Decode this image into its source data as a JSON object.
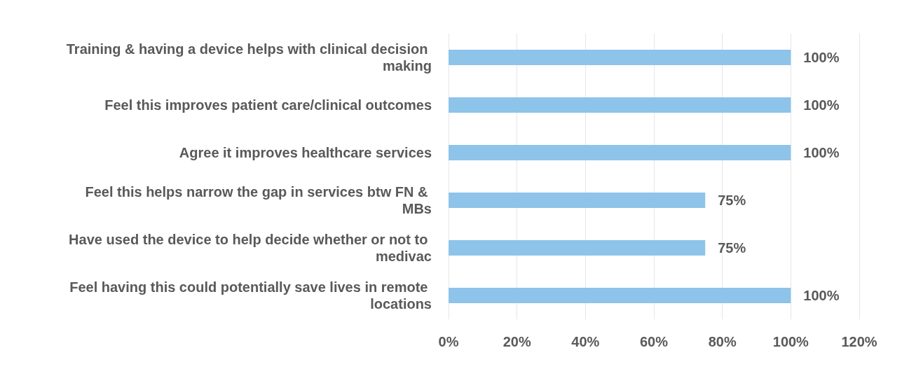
{
  "chart_data": {
    "type": "bar",
    "orientation": "horizontal",
    "categories": [
      "Training & having a device helps with clinical decision making",
      "Feel this improves patient care/clinical outcomes",
      "Agree it improves healthcare services",
      "Feel this helps narrow the gap in services btw FN & MBs",
      "Have used the device to help decide whether or not to medivac",
      "Feel having this could potentially save lives in remote locations"
    ],
    "values": [
      100,
      100,
      100,
      75,
      75,
      100
    ],
    "value_labels": [
      "100%",
      "100%",
      "100%",
      "75%",
      "75%",
      "100%"
    ],
    "color": "#8ec3ea",
    "xlim": [
      0,
      120
    ],
    "xticks": [
      {
        "value": 0,
        "label": "0%"
      },
      {
        "value": 20,
        "label": "20%"
      },
      {
        "value": 40,
        "label": "40%"
      },
      {
        "value": 60,
        "label": "60%"
      },
      {
        "value": 80,
        "label": "80%"
      },
      {
        "value": 100,
        "label": "100%"
      },
      {
        "value": 120,
        "label": "120%"
      }
    ],
    "grid": "x"
  }
}
